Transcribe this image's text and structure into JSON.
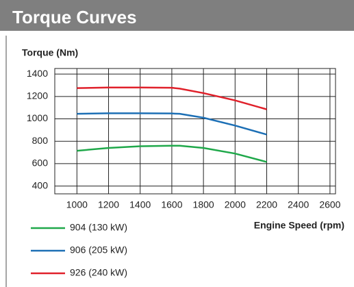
{
  "chart_data": {
    "type": "line",
    "title": "Torque Curves",
    "ylabel": "Torque (Nm)",
    "xlabel": "Engine Speed (rpm)",
    "x": [
      1000,
      1200,
      1400,
      1600,
      1650,
      1800,
      2000,
      2200
    ],
    "series": [
      {
        "name": "904 (130 kW)",
        "color": "#1fa84a",
        "values": [
          715,
          740,
          755,
          760,
          760,
          740,
          690,
          615
        ]
      },
      {
        "name": "906 (205 kW)",
        "color": "#1c6fb5",
        "values": [
          1045,
          1050,
          1050,
          1048,
          1045,
          1010,
          940,
          860
        ]
      },
      {
        "name": "926 (240 kW)",
        "color": "#e0202a",
        "values": [
          1275,
          1280,
          1280,
          1278,
          1270,
          1230,
          1165,
          1085
        ]
      }
    ],
    "xlim": [
      860,
      2635
    ],
    "xticks": [
      1000,
      1200,
      1400,
      1600,
      1800,
      2000,
      2200,
      2400,
      2600
    ],
    "ylim": [
      330,
      1450
    ],
    "yticks": [
      400,
      600,
      800,
      1000,
      1200,
      1400
    ],
    "grid": true,
    "legend": "bottom-left"
  }
}
